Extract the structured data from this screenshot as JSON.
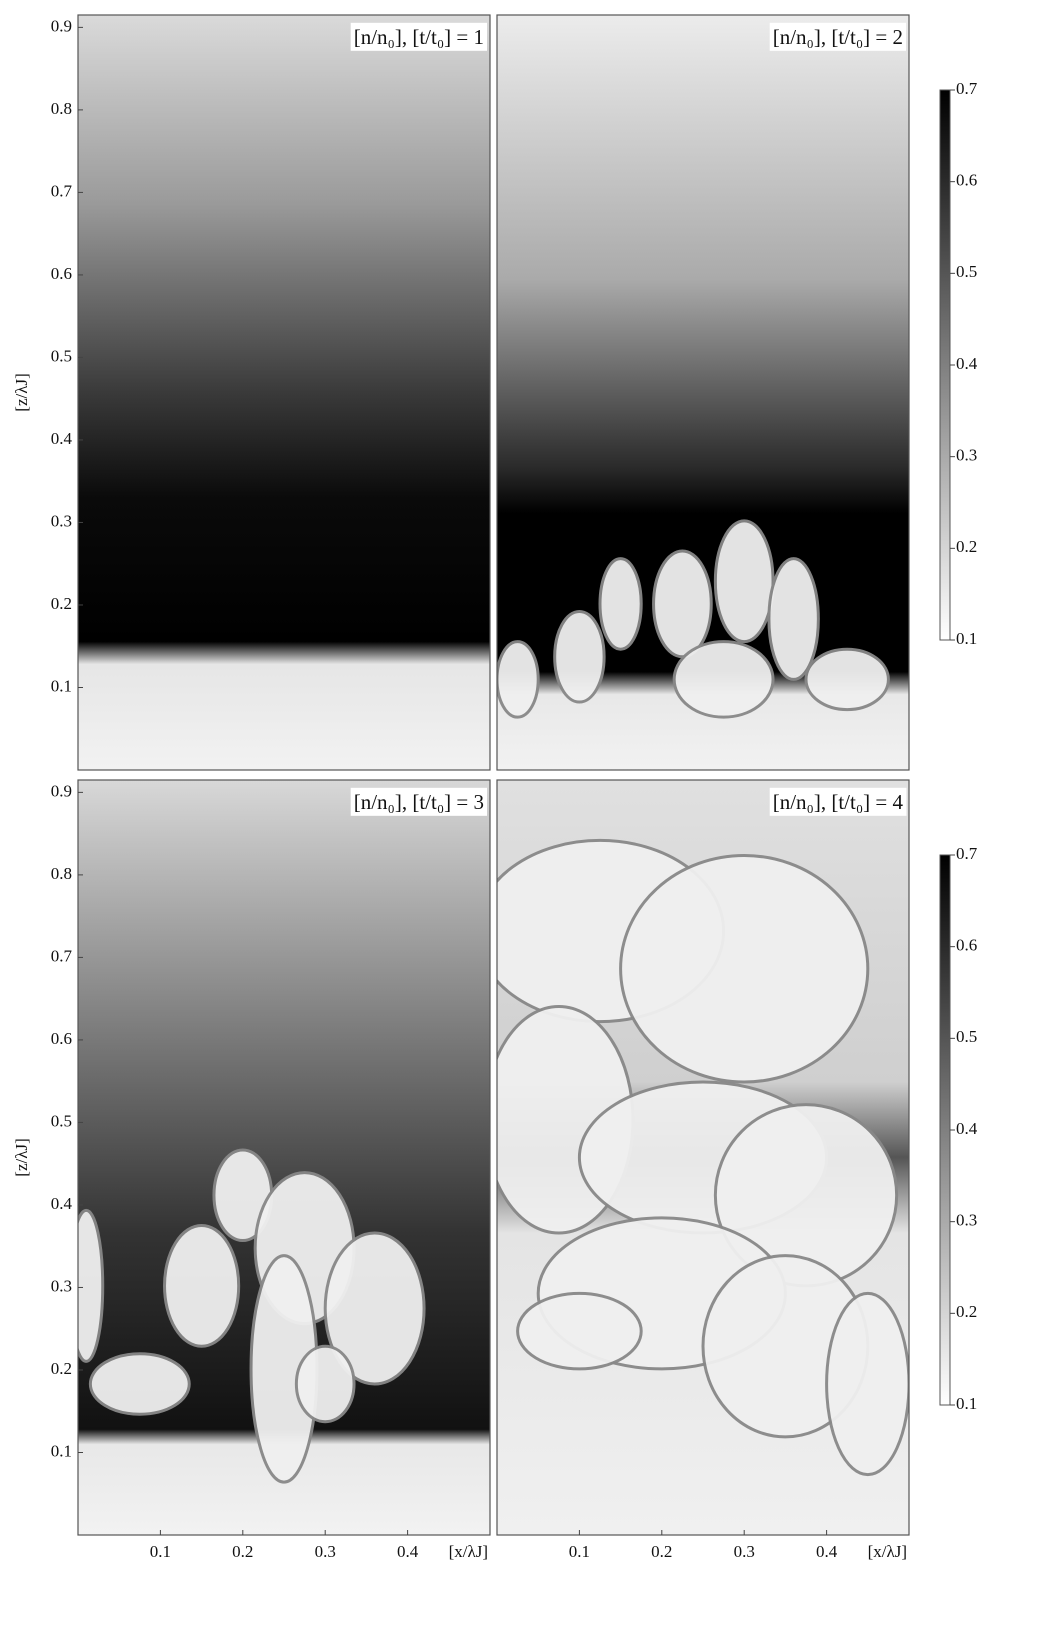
{
  "chart_data": [
    {
      "type": "field",
      "title": "[n/n₀], [t/t₀] = 1",
      "ylabel": "[z/λJ]",
      "xlim": [
        0,
        0.5
      ],
      "ylim": [
        0,
        0.915
      ],
      "yticks": [
        0.1,
        0.2,
        0.3,
        0.4,
        0.5,
        0.6,
        0.7,
        0.8,
        0.9
      ]
    },
    {
      "type": "field",
      "title": "[n/n₀], [t/t₀] = 2",
      "xlim": [
        0,
        0.5
      ],
      "ylim": [
        0,
        0.915
      ],
      "clim": [
        0.1,
        0.7
      ],
      "cticks": [
        0.1,
        0.2,
        0.3,
        0.4,
        0.5,
        0.6,
        0.7
      ]
    },
    {
      "type": "field",
      "title": "[n/n₀], [t/t₀] = 3",
      "ylabel": "[z/λJ]",
      "xlabel": "[x/λJ]",
      "xlim": [
        0,
        0.5
      ],
      "ylim": [
        0,
        0.915
      ],
      "yticks": [
        0.1,
        0.2,
        0.3,
        0.4,
        0.5,
        0.6,
        0.7,
        0.8,
        0.9
      ],
      "xticks": [
        0.1,
        0.2,
        0.3,
        0.4
      ]
    },
    {
      "type": "field",
      "title": "[n/n₀], [t/t₀] = 4",
      "xlabel": "[x/λJ]",
      "xlim": [
        0,
        0.5
      ],
      "ylim": [
        0,
        0.915
      ],
      "xticks": [
        0.1,
        0.2,
        0.3,
        0.4
      ],
      "clim": [
        0.1,
        0.7
      ],
      "cticks": [
        0.1,
        0.2,
        0.3,
        0.4,
        0.5,
        0.6,
        0.7
      ]
    }
  ]
}
